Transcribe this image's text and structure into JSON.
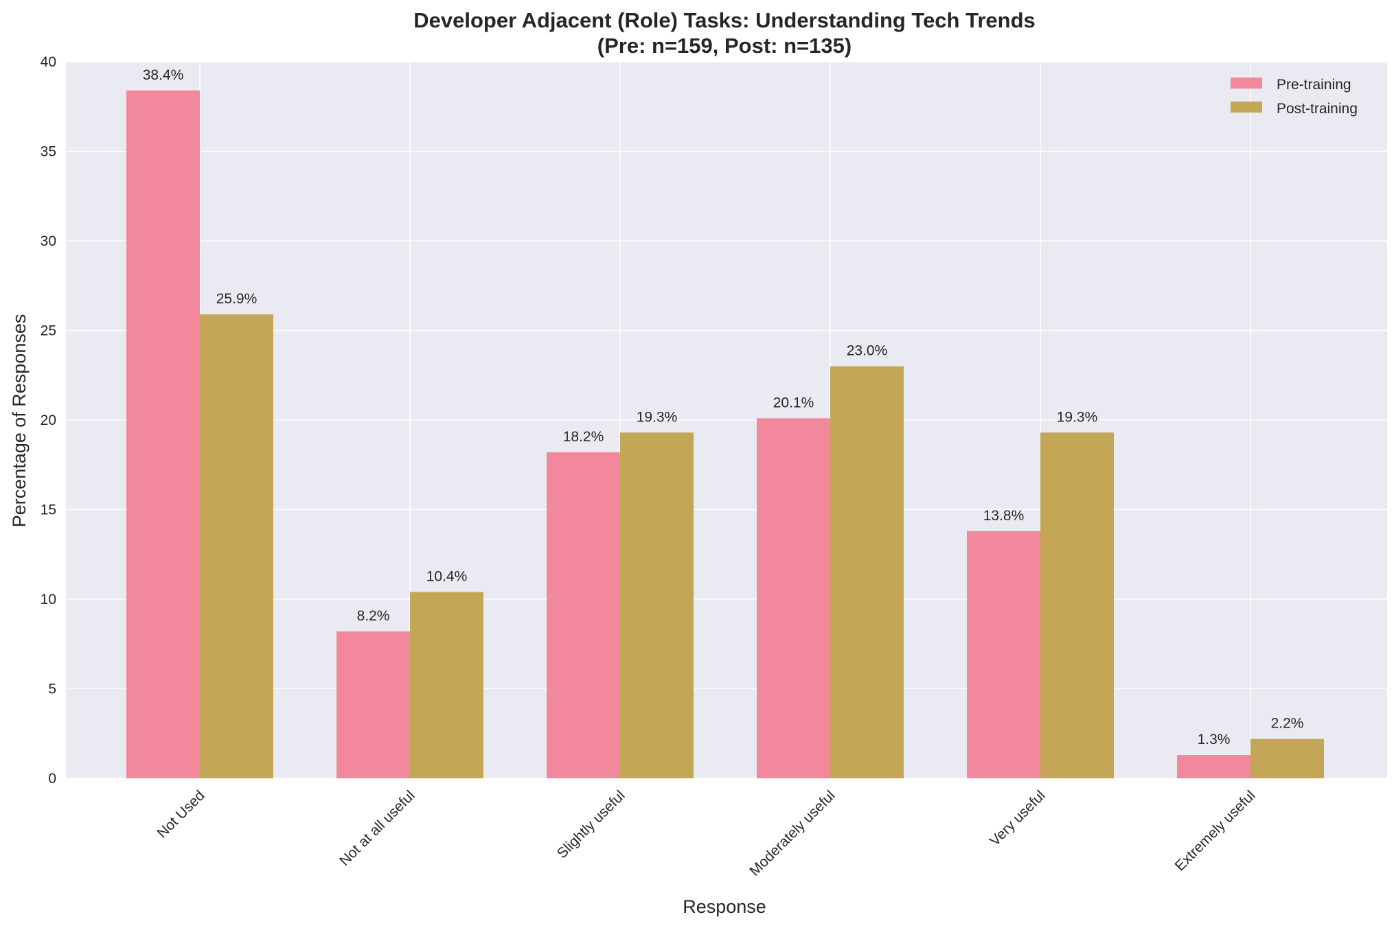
{
  "chart_data": {
    "type": "bar",
    "title": "Developer Adjacent (Role) Tasks: Understanding Tech Trends",
    "subtitle": "(Pre: n=159, Post: n=135)",
    "xlabel": "Response",
    "ylabel": "Percentage of Responses",
    "ylim": [
      0,
      40
    ],
    "yticks": [
      0,
      5,
      10,
      15,
      20,
      25,
      30,
      35,
      40
    ],
    "grid": true,
    "legend_position": "top-right",
    "categories": [
      "Not Used",
      "Not at all useful",
      "Slightly useful",
      "Moderately useful",
      "Very useful",
      "Extremely useful"
    ],
    "series": [
      {
        "name": "Pre-training",
        "color": "#f2889b",
        "values": [
          38.4,
          8.2,
          18.2,
          20.1,
          13.8,
          1.3
        ],
        "labels": [
          "38.4%",
          "8.2%",
          "18.2%",
          "20.1%",
          "13.8%",
          "1.3%"
        ]
      },
      {
        "name": "Post-training",
        "color": "#c4a657",
        "values": [
          25.9,
          10.4,
          19.3,
          23.0,
          19.3,
          2.2
        ],
        "labels": [
          "25.9%",
          "10.4%",
          "19.3%",
          "23.0%",
          "19.3%",
          "2.2%"
        ]
      }
    ],
    "colors": {
      "plot_background": "#eaeaf2",
      "grid": "#ffffff",
      "text": "#262626"
    }
  }
}
